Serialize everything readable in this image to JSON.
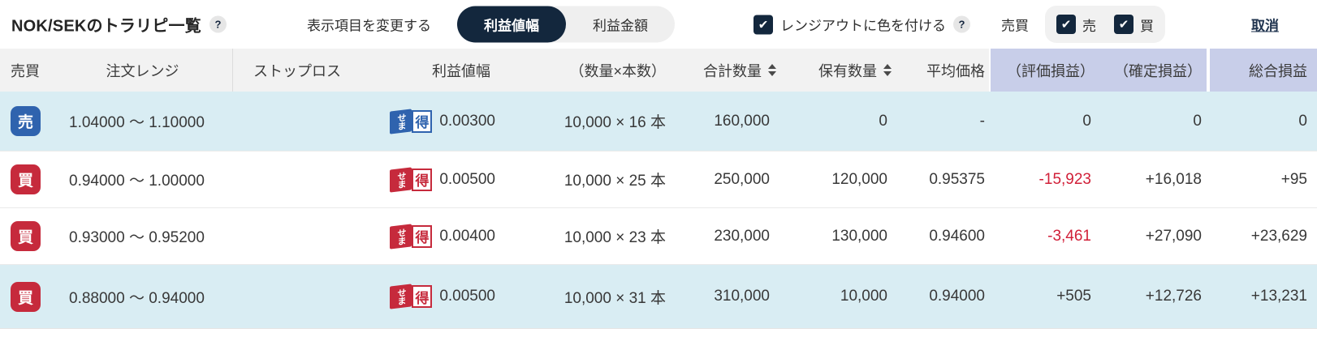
{
  "topbar": {
    "title": "NOK/SEKのトラリピ一覧",
    "title_help": "?",
    "display_label": "表示項目を変更する",
    "toggle_options": [
      {
        "label": "利益値幅",
        "selected": true
      },
      {
        "label": "利益金額",
        "selected": false
      }
    ],
    "rangeout": {
      "label": "レンジアウトに色を付ける",
      "help": "?",
      "checked": true
    },
    "side_filter": {
      "label": "売買",
      "sell": {
        "label": "売",
        "checked": true
      },
      "buy": {
        "label": "買",
        "checked": true
      }
    },
    "cancel_link": "取消"
  },
  "sematoku": {
    "left": "せま",
    "right": "得"
  },
  "table": {
    "headers": [
      "売買",
      "注文レンジ",
      "ストップロス",
      "利益値幅",
      "（数量×本数）",
      "合計数量",
      "保有数量",
      "平均価格",
      "（評価損益）",
      "（確定損益）",
      "総合損益"
    ],
    "rows": [
      {
        "side": "売",
        "side_type": "sell",
        "rangeout": true,
        "order_range": "1.04000 ～ 1.10000",
        "stop_loss": "",
        "profit_width": "0.00300",
        "qty_per_order": "10,000 × 16 本",
        "total_qty": "160,000",
        "held_qty": "0",
        "avg_price": "-",
        "eval_pl": "0",
        "fixed_pl": "0",
        "total_pl": "0"
      },
      {
        "side": "買",
        "side_type": "buy",
        "rangeout": false,
        "order_range": "0.94000 ～ 1.00000",
        "stop_loss": "",
        "profit_width": "0.00500",
        "qty_per_order": "10,000 × 25 本",
        "total_qty": "250,000",
        "held_qty": "120,000",
        "avg_price": "0.95375",
        "eval_pl": "-15,923",
        "fixed_pl": "+16,018",
        "total_pl": "+95"
      },
      {
        "side": "買",
        "side_type": "buy",
        "rangeout": false,
        "order_range": "0.93000 ～ 0.95200",
        "stop_loss": "",
        "profit_width": "0.00400",
        "qty_per_order": "10,000 × 23 本",
        "total_qty": "230,000",
        "held_qty": "130,000",
        "avg_price": "0.94600",
        "eval_pl": "-3,461",
        "fixed_pl": "+27,090",
        "total_pl": "+23,629"
      },
      {
        "side": "買",
        "side_type": "buy",
        "rangeout": true,
        "order_range": "0.88000 ～ 0.94000",
        "stop_loss": "",
        "profit_width": "0.00500",
        "qty_per_order": "10,000 × 31 本",
        "total_qty": "310,000",
        "held_qty": "10,000",
        "avg_price": "0.94000",
        "eval_pl": "+505",
        "fixed_pl": "+12,726",
        "total_pl": "+13,231"
      }
    ]
  },
  "colors": {
    "accent_navy": "#13273d",
    "sell_blue": "#2f63ae",
    "buy_red": "#c62a3c",
    "rangeout_row_bg": "#d9edf3",
    "pl_negative": "#d11f38",
    "header_highlight_bg": "#c8cee9",
    "header_bg": "#f2f2f2"
  }
}
